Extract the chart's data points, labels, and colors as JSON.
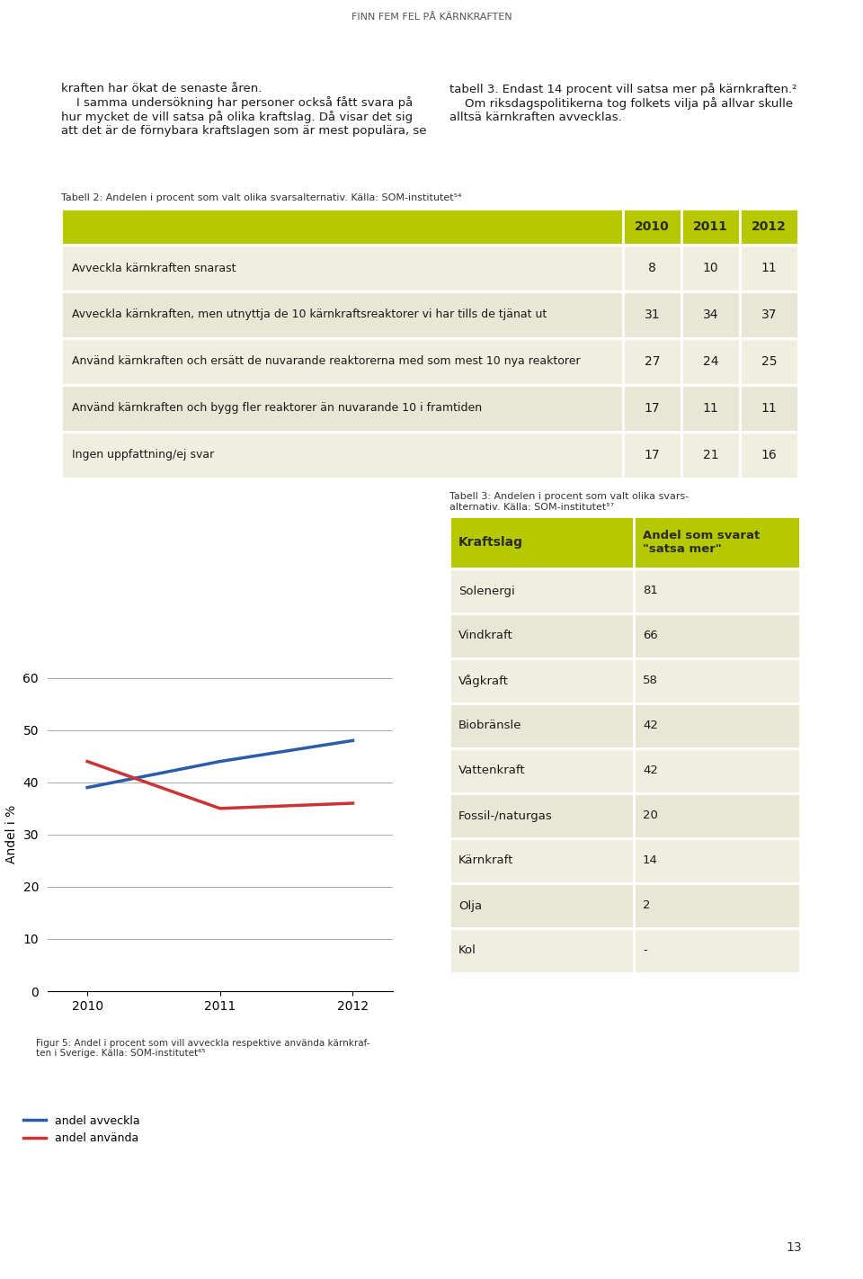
{
  "page_title": "FINN FEM FEL PÅ KÄRNKRAFTEN",
  "page_number": "13",
  "top_text_left": "kraften har ökat de senaste åren.\n    I samma undersökning har personer också fått svara på\nhur mycket de vill satsa på olika kraftslag. Då visar det sig\natt det är de förnybara kraftslagen som är mest populära, se",
  "top_text_right": "tabell 3. Endast 14 procent vill satsa mer på kärnkraften.²\n    Om riksdagspolitikerna tog folkets vilja på allvar skulle\nalltsä kärnkraften avvecklas.",
  "table1_title": "Tabell 2: Andelen i procent som valt olika svarsalternativ. Källa: SOM-institutet⁵⁴",
  "table1_header_color": "#b5c800",
  "table1_header_text_color": "#2b2b2b",
  "table1_row_odd_color": "#f0efdf",
  "table1_row_even_color": "#e8e7d5",
  "table1_border_color": "#ffffff",
  "table1_years": [
    "2010",
    "2011",
    "2012"
  ],
  "table1_rows": [
    {
      "label": "Avveckla kärnkraften snarast",
      "values": [
        8,
        10,
        11
      ]
    },
    {
      "label": "Avveckla kärnkraften, men utnyttja de 10 kärnkraftsreaktorer vi har tills de tjänat ut",
      "values": [
        31,
        34,
        37
      ]
    },
    {
      "label": "Använd kärnkraften och ersätt de nuvarande reaktorerna med som mest 10 nya reaktorer",
      "values": [
        27,
        24,
        25
      ]
    },
    {
      "label": "Använd kärnkraften och bygg fler reaktorer än nuvarande 10 i framtiden",
      "values": [
        17,
        11,
        11
      ]
    },
    {
      "label": "Ingen uppfattning/ej svar",
      "values": [
        17,
        21,
        16
      ]
    }
  ],
  "line_chart_ylabel": "Andel i %",
  "line_chart_xlabel_years": [
    2010,
    2011,
    2012
  ],
  "line_avveckla": [
    39,
    44,
    48
  ],
  "line_anvanda": [
    44,
    35,
    36
  ],
  "line_avveckla_color": "#2a5caa",
  "line_anvanda_color": "#cc3333",
  "line_avveckla_label": "andel avveckla",
  "line_anvanda_label": "andel använda",
  "chart_ylim": [
    0,
    60
  ],
  "chart_yticks": [
    0,
    10,
    20,
    30,
    40,
    50,
    60
  ],
  "chart_bg_color": "#ffffff",
  "chart_grid_color": "#aaaaaa",
  "fig5_caption": "Figur 5: Andel i procent som vill avveckla respektive använda kärnkraf-\nten i Sverige. Källa: SOM-institutet⁶⁵",
  "table3_title": "Tabell 3: Andelen i procent som valt olika svars-\nalternativ. Källa: SOM-institutet⁵⁷",
  "table3_header_color": "#b5c800",
  "table3_col1_header": "Kraftslag",
  "table3_col2_header": "Andel som svarat\n\"satsa mer\"",
  "table3_row_odd_color": "#f0efdf",
  "table3_row_even_color": "#e8e7d5",
  "table3_rows": [
    {
      "kraftslag": "Solenergi",
      "andel": "81"
    },
    {
      "kraftslag": "Vindkraft",
      "andel": "66"
    },
    {
      "kraftslag": "Vågkraft",
      "andel": "58"
    },
    {
      "kraftslag": "Biobränsle",
      "andel": "42"
    },
    {
      "kraftslag": "Vattenkraft",
      "andel": "42"
    },
    {
      "kraftslag": "Fossil-/naturgas",
      "andel": "20"
    },
    {
      "kraftslag": "Kärnkraft",
      "andel": "14"
    },
    {
      "kraftslag": "Olja",
      "andel": "2"
    },
    {
      "kraftslag": "Kol",
      "andel": "-"
    }
  ],
  "background_color": "#ffffff",
  "text_color": "#1a1a1a"
}
